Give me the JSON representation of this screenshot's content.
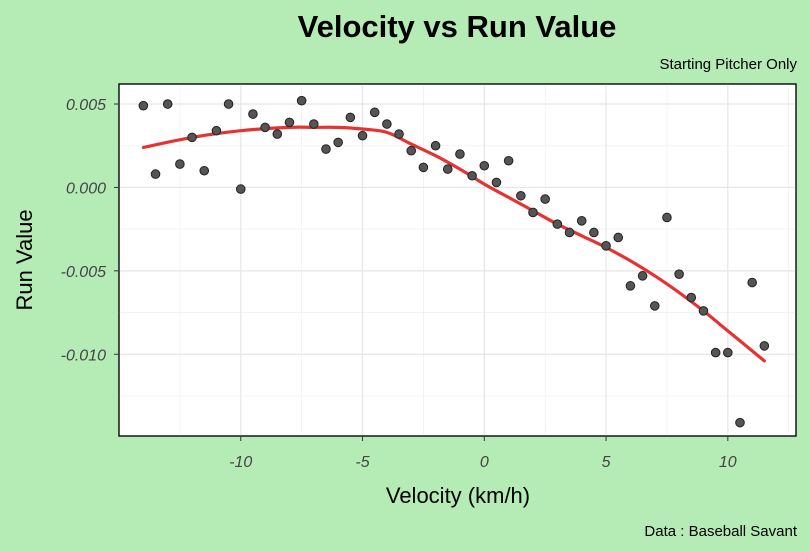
{
  "chart_data": {
    "type": "scatter",
    "title": "Velocity vs Run Value",
    "subtitle": "Starting Pitcher Only",
    "caption": "Data : Baseball Savant",
    "xlabel": "Velocity (km/h)",
    "ylabel": "Run Value",
    "xlim": [
      -15,
      12.8
    ],
    "ylim": [
      -0.0149,
      0.0062
    ],
    "xticks": [
      -10,
      -5,
      0,
      5,
      10
    ],
    "xtick_labels": [
      "-10",
      "-5",
      "0",
      "5",
      "10"
    ],
    "yticks": [
      0.005,
      0.0,
      -0.005,
      -0.01
    ],
    "ytick_labels": [
      "0.005",
      "0.000",
      "-0.005",
      "-0.010"
    ],
    "grid": true,
    "legend": "none",
    "colors": {
      "points": "#555555",
      "trend": "#e53333",
      "background": "#b5ebb5",
      "panel": "#ffffff"
    },
    "series": [
      {
        "kind": "points",
        "x": [
          -14,
          -13.5,
          -13,
          -12.5,
          -12,
          -11.5,
          -11,
          -10.5,
          -10,
          -9.5,
          -9,
          -8.5,
          -8,
          -7.5,
          -7,
          -6.5,
          -6,
          -5.5,
          -5,
          -4.5,
          -4,
          -3.5,
          -3,
          -2.5,
          -2,
          -1.5,
          -1,
          -0.5,
          0,
          0.5,
          1,
          1.5,
          2,
          2.5,
          3,
          3.5,
          4,
          4.5,
          5,
          5.5,
          6,
          6.5,
          7,
          7.5,
          8,
          8.5,
          9,
          9.5,
          10,
          10.5,
          11,
          11.5
        ],
        "y": [
          0.0049,
          0.0008,
          0.005,
          0.0014,
          0.003,
          0.001,
          0.0034,
          0.005,
          -0.0001,
          0.0044,
          0.0036,
          0.0032,
          0.0039,
          0.0052,
          0.0038,
          0.0023,
          0.0027,
          0.0042,
          0.0031,
          0.0045,
          0.0038,
          0.0032,
          0.0022,
          0.0012,
          0.0025,
          0.0011,
          0.002,
          0.0007,
          0.0013,
          0.0003,
          0.0016,
          -0.0005,
          -0.0015,
          -0.0007,
          -0.0022,
          -0.0027,
          -0.002,
          -0.0027,
          -0.0035,
          -0.003,
          -0.0059,
          -0.0053,
          -0.0071,
          -0.0018,
          -0.0052,
          -0.0066,
          -0.0074,
          -0.0099,
          -0.0099,
          -0.0141,
          -0.0057,
          -0.0095
        ]
      },
      {
        "kind": "trend",
        "x": [
          -14,
          -12,
          -10,
          -8,
          -7,
          -6,
          -5,
          -4,
          -3,
          -2,
          -1,
          0,
          1,
          2,
          3,
          4,
          5,
          6,
          7,
          8,
          9,
          10,
          11.5
        ],
        "y": [
          0.0024,
          0.003,
          0.0034,
          0.0036,
          0.0036,
          0.0036,
          0.0035,
          0.0033,
          0.0026,
          0.0019,
          0.0011,
          0.0002,
          -0.0006,
          -0.0014,
          -0.0022,
          -0.0029,
          -0.0036,
          -0.0044,
          -0.0053,
          -0.0063,
          -0.0074,
          -0.0086,
          -0.0104
        ]
      }
    ]
  }
}
